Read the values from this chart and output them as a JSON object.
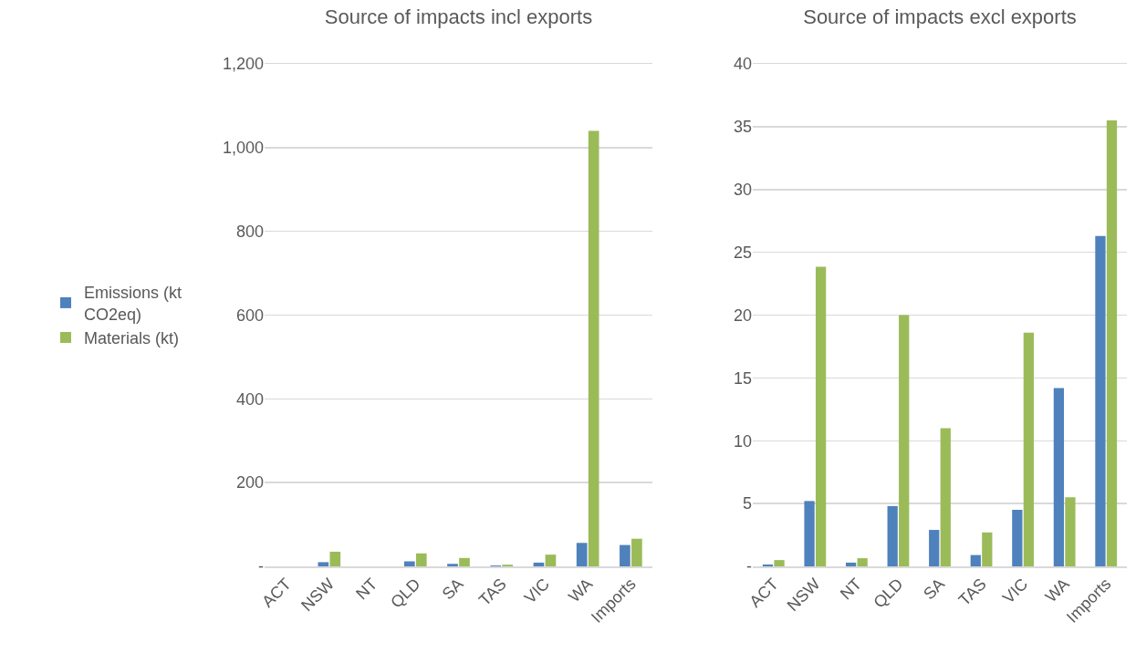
{
  "chart_data": [
    {
      "type": "bar",
      "title": "Source of impacts incl exports",
      "categories": [
        "ACT",
        "NSW",
        "NT",
        "QLD",
        "SA",
        "TAS",
        "VIC",
        "WA",
        "Imports"
      ],
      "series": [
        {
          "name": "Emissions (kt CO2eq)",
          "color": "#4f81bd",
          "values": [
            null,
            10,
            null,
            12,
            6,
            2,
            9,
            56,
            51
          ]
        },
        {
          "name": "Materials (kt)",
          "color": "#9bbb59",
          "values": [
            null,
            35,
            null,
            31,
            20,
            4,
            28,
            1040,
            66
          ]
        }
      ],
      "ylim": [
        0,
        1200
      ],
      "yticks": [
        {
          "value": 0,
          "label": "-"
        },
        200,
        400,
        600,
        800,
        {
          "value": 1000,
          "label": "1,000"
        },
        {
          "value": 1200,
          "label": "1,200"
        }
      ],
      "grid": "y",
      "legend": "left"
    },
    {
      "type": "bar",
      "title": "Source of impacts excl exports",
      "categories": [
        "ACT",
        "NSW",
        "NT",
        "QLD",
        "SA",
        "TAS",
        "VIC",
        "WA",
        "Imports"
      ],
      "series": [
        {
          "color": "#4f81bd",
          "values": [
            0.15,
            5.2,
            0.3,
            4.8,
            2.9,
            0.9,
            4.5,
            14.2,
            26.3
          ]
        },
        {
          "color": "#9bbb59",
          "values": [
            0.5,
            23.85,
            0.65,
            20,
            11,
            2.7,
            18.6,
            5.5,
            35.5
          ]
        }
      ],
      "ylim": [
        0,
        40
      ],
      "yticks": [
        {
          "value": 0,
          "label": "-"
        },
        5,
        10,
        15,
        20,
        25,
        30,
        35,
        40
      ],
      "grid": "y",
      "legend": false
    }
  ]
}
